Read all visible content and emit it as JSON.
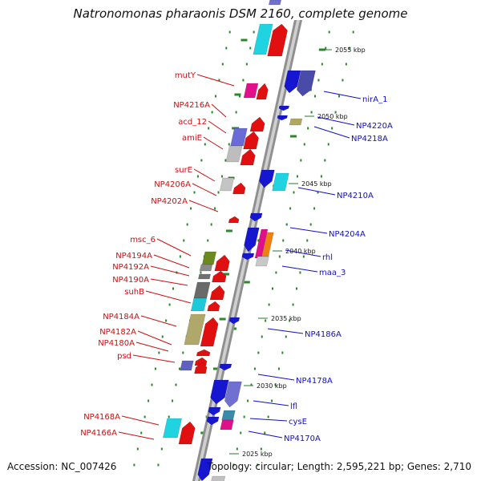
{
  "title": "Natronomonas pharaonis DSM 2160, complete genome",
  "footer": {
    "accession": "Accession: NC_007426",
    "topology": "Topology: circular; Length: 2,595,221 bp; Genes: 2,710"
  },
  "colors": {
    "backbone": "#9a9a9a",
    "ticks": "#2a8a2a",
    "left_label": "#cc1010",
    "right_label": "#1010c0"
  },
  "kbp_markers": [
    "2055 kbp",
    "2050 kbp",
    "2045 kbp",
    "2040 kbp",
    "2035 kbp",
    "2030 kbp",
    "2025 kbp"
  ],
  "left_labels": [
    "mutY",
    "NP4216A",
    "acd_12",
    "amiE",
    "surE",
    "NP4206A",
    "NP4202A",
    "msc_6",
    "NP4194A",
    "NP4192A",
    "NP4190A",
    "suhB",
    "NP4184A",
    "NP4182A",
    "NP4180A",
    "psd",
    "NP4168A",
    "NP4166A"
  ],
  "right_labels": [
    "nirA_1",
    "NP4220A",
    "NP4218A",
    "NP4210A",
    "NP4204A",
    "rhl",
    "maa_3",
    "NP4186A",
    "NP4178A",
    "lfl",
    "cysE",
    "NP4170A"
  ]
}
